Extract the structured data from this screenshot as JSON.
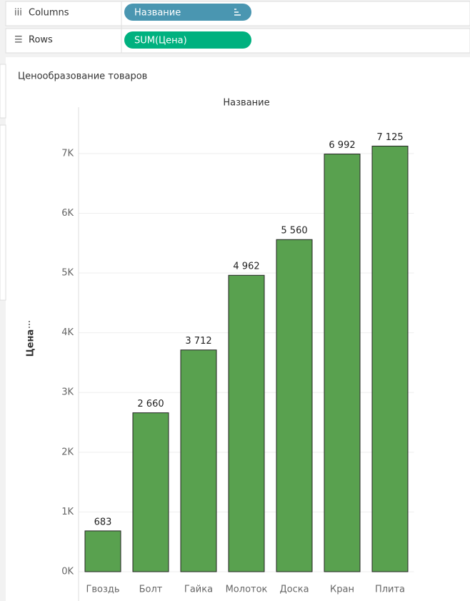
{
  "shelves": {
    "columns_label": "Columns",
    "columns_pill": "Название",
    "rows_label": "Rows",
    "rows_pill": "SUM(Цена)"
  },
  "chart_data": {
    "type": "bar",
    "title": "Ценообразование товаров",
    "x_header": "Название",
    "y_label": "Цена",
    "categories": [
      "Гвоздь",
      "Болт",
      "Гайка",
      "Молоток",
      "Доска",
      "Кран",
      "Плита"
    ],
    "values": [
      683,
      2660,
      3712,
      4962,
      5560,
      6992,
      7125
    ],
    "value_labels": [
      "683",
      "2 660",
      "3 712",
      "4 962",
      "5 560",
      "6 992",
      "7 125"
    ],
    "color": "#59a14f",
    "ylim": [
      0,
      7800
    ],
    "yticks": [
      {
        "value": 0,
        "label": "0K"
      },
      {
        "value": 1000,
        "label": "1K"
      },
      {
        "value": 2000,
        "label": "2K"
      },
      {
        "value": 3000,
        "label": "3K"
      },
      {
        "value": 4000,
        "label": "4K"
      },
      {
        "value": 5000,
        "label": "5K"
      },
      {
        "value": 6000,
        "label": "6K"
      },
      {
        "value": 7000,
        "label": "7K"
      }
    ],
    "grid": true
  }
}
